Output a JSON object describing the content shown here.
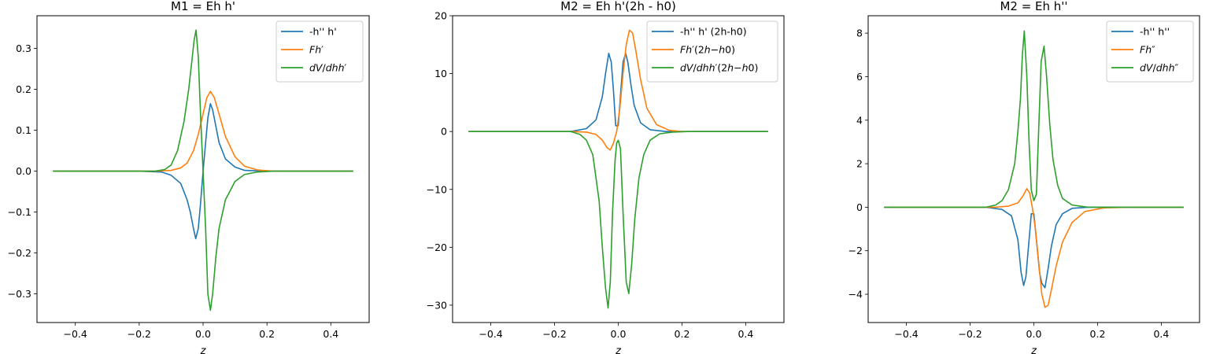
{
  "colors": {
    "blue": "#1f77b4",
    "orange": "#ff7f0e",
    "green": "#2ca02c"
  },
  "chart_data": [
    {
      "type": "line",
      "title": "M1 = Eh h'",
      "xlabel": "z",
      "xlim": [
        -0.52,
        0.52
      ],
      "ylim": [
        -0.37,
        0.38
      ],
      "xticks": [
        -0.4,
        -0.2,
        0.0,
        0.2,
        0.4
      ],
      "yticks": [
        -0.3,
        -0.2,
        -0.1,
        0.0,
        0.1,
        0.2,
        0.3
      ],
      "legend": "top-right",
      "series": [
        {
          "name": "-h'' h'",
          "color": "blue",
          "points": [
            [
              -0.47,
              0
            ],
            [
              -0.2,
              0
            ],
            [
              -0.13,
              -0.002
            ],
            [
              -0.1,
              -0.01
            ],
            [
              -0.07,
              -0.03
            ],
            [
              -0.05,
              -0.07
            ],
            [
              -0.04,
              -0.1
            ],
            [
              -0.03,
              -0.14
            ],
            [
              -0.023,
              -0.165
            ],
            [
              -0.015,
              -0.14
            ],
            [
              -0.008,
              -0.08
            ],
            [
              0,
              0
            ],
            [
              0.008,
              0.07
            ],
            [
              0.015,
              0.13
            ],
            [
              0.023,
              0.165
            ],
            [
              0.03,
              0.15
            ],
            [
              0.04,
              0.11
            ],
            [
              0.05,
              0.07
            ],
            [
              0.07,
              0.03
            ],
            [
              0.1,
              0.01
            ],
            [
              0.13,
              0.002
            ],
            [
              0.2,
              0
            ],
            [
              0.47,
              0
            ]
          ]
        },
        {
          "name": "Fh'",
          "color": "orange",
          "points": [
            [
              -0.47,
              0
            ],
            [
              -0.15,
              0
            ],
            [
              -0.1,
              0.002
            ],
            [
              -0.07,
              0.008
            ],
            [
              -0.05,
              0.02
            ],
            [
              -0.03,
              0.05
            ],
            [
              -0.015,
              0.09
            ],
            [
              0,
              0.14
            ],
            [
              0.012,
              0.18
            ],
            [
              0.023,
              0.195
            ],
            [
              0.035,
              0.18
            ],
            [
              0.05,
              0.14
            ],
            [
              0.07,
              0.085
            ],
            [
              0.1,
              0.035
            ],
            [
              0.13,
              0.012
            ],
            [
              0.17,
              0.003
            ],
            [
              0.22,
              0
            ],
            [
              0.47,
              0
            ]
          ]
        },
        {
          "name": "dV/dhh'",
          "color": "green",
          "points": [
            [
              -0.47,
              0
            ],
            [
              -0.15,
              0
            ],
            [
              -0.12,
              0.004
            ],
            [
              -0.1,
              0.015
            ],
            [
              -0.08,
              0.05
            ],
            [
              -0.06,
              0.12
            ],
            [
              -0.045,
              0.2
            ],
            [
              -0.035,
              0.27
            ],
            [
              -0.028,
              0.32
            ],
            [
              -0.022,
              0.345
            ],
            [
              -0.015,
              0.28
            ],
            [
              -0.008,
              0.14
            ],
            [
              0,
              0
            ],
            [
              0.008,
              -0.14
            ],
            [
              0.015,
              -0.3
            ],
            [
              0.023,
              -0.34
            ],
            [
              0.03,
              -0.3
            ],
            [
              0.04,
              -0.21
            ],
            [
              0.05,
              -0.14
            ],
            [
              0.07,
              -0.07
            ],
            [
              0.1,
              -0.025
            ],
            [
              0.13,
              -0.008
            ],
            [
              0.17,
              -0.002
            ],
            [
              0.22,
              0
            ],
            [
              0.47,
              0
            ]
          ]
        }
      ]
    },
    {
      "type": "line",
      "title": "M2 = Eh h'(2h - h0)",
      "xlabel": "z",
      "xlim": [
        -0.52,
        0.52
      ],
      "ylim": [
        -33,
        20
      ],
      "xticks": [
        -0.4,
        -0.2,
        0.0,
        0.2,
        0.4
      ],
      "yticks": [
        -30,
        -20,
        -10,
        0,
        10,
        20
      ],
      "legend": "top-right",
      "series": [
        {
          "name": "-h'' h' (2h-h0)",
          "color": "blue",
          "points": [
            [
              -0.47,
              0
            ],
            [
              -0.15,
              0
            ],
            [
              -0.1,
              0.5
            ],
            [
              -0.07,
              2
            ],
            [
              -0.05,
              6
            ],
            [
              -0.04,
              10
            ],
            [
              -0.03,
              13.5
            ],
            [
              -0.022,
              12
            ],
            [
              -0.015,
              7
            ],
            [
              -0.008,
              1
            ],
            [
              0,
              1
            ],
            [
              0.008,
              7
            ],
            [
              0.015,
              12
            ],
            [
              0.023,
              13.5
            ],
            [
              0.03,
              12
            ],
            [
              0.04,
              8
            ],
            [
              0.05,
              4.5
            ],
            [
              0.07,
              1.5
            ],
            [
              0.1,
              0.3
            ],
            [
              0.15,
              0
            ],
            [
              0.47,
              0
            ]
          ]
        },
        {
          "name": "Fh'(2h-h0)",
          "color": "orange",
          "points": [
            [
              -0.47,
              0
            ],
            [
              -0.15,
              0
            ],
            [
              -0.1,
              -0.1
            ],
            [
              -0.07,
              -0.5
            ],
            [
              -0.05,
              -1.5
            ],
            [
              -0.035,
              -2.8
            ],
            [
              -0.025,
              -3.2
            ],
            [
              -0.015,
              -2
            ],
            [
              -0.005,
              0
            ],
            [
              0.005,
              4
            ],
            [
              0.015,
              10
            ],
            [
              0.025,
              15
            ],
            [
              0.035,
              17.5
            ],
            [
              0.045,
              17
            ],
            [
              0.055,
              14
            ],
            [
              0.07,
              9
            ],
            [
              0.09,
              4
            ],
            [
              0.12,
              1.2
            ],
            [
              0.16,
              0.2
            ],
            [
              0.2,
              0
            ],
            [
              0.47,
              0
            ]
          ]
        },
        {
          "name": "dV/dhh'(2h-h0)",
          "color": "green",
          "points": [
            [
              -0.47,
              0
            ],
            [
              -0.15,
              0
            ],
            [
              -0.12,
              -0.5
            ],
            [
              -0.1,
              -1.5
            ],
            [
              -0.08,
              -4
            ],
            [
              -0.06,
              -12
            ],
            [
              -0.05,
              -20
            ],
            [
              -0.04,
              -27
            ],
            [
              -0.032,
              -30.5
            ],
            [
              -0.025,
              -26
            ],
            [
              -0.018,
              -14
            ],
            [
              -0.01,
              -5
            ],
            [
              -0.005,
              -2
            ],
            [
              0,
              -1.5
            ],
            [
              0.007,
              -3
            ],
            [
              0.015,
              -14
            ],
            [
              0.025,
              -26
            ],
            [
              0.033,
              -28
            ],
            [
              0.042,
              -23
            ],
            [
              0.052,
              -15
            ],
            [
              0.065,
              -8
            ],
            [
              0.08,
              -4
            ],
            [
              0.1,
              -1.5
            ],
            [
              0.13,
              -0.4
            ],
            [
              0.17,
              -0.1
            ],
            [
              0.22,
              0
            ],
            [
              0.47,
              0
            ]
          ]
        }
      ]
    },
    {
      "type": "line",
      "title": "M2 = Eh h''",
      "xlabel": "z",
      "xlim": [
        -0.52,
        0.52
      ],
      "ylim": [
        -5.3,
        8.8
      ],
      "xticks": [
        -0.4,
        -0.2,
        0.0,
        0.2,
        0.4
      ],
      "yticks": [
        -4,
        -2,
        0,
        2,
        4,
        6,
        8
      ],
      "legend": "top-right",
      "series": [
        {
          "name": "-h'' h''",
          "color": "blue",
          "points": [
            [
              -0.47,
              0
            ],
            [
              -0.15,
              0
            ],
            [
              -0.1,
              -0.1
            ],
            [
              -0.07,
              -0.4
            ],
            [
              -0.05,
              -1.5
            ],
            [
              -0.04,
              -3
            ],
            [
              -0.032,
              -3.6
            ],
            [
              -0.025,
              -3.2
            ],
            [
              -0.015,
              -1.5
            ],
            [
              -0.008,
              -0.3
            ],
            [
              0,
              -0.3
            ],
            [
              0.008,
              -1.5
            ],
            [
              0.018,
              -3
            ],
            [
              0.025,
              -3.5
            ],
            [
              0.035,
              -3.7
            ],
            [
              0.045,
              -2.8
            ],
            [
              0.055,
              -1.8
            ],
            [
              0.07,
              -0.8
            ],
            [
              0.09,
              -0.3
            ],
            [
              0.12,
              -0.05
            ],
            [
              0.17,
              0
            ],
            [
              0.47,
              0
            ]
          ]
        },
        {
          "name": "Fh''",
          "color": "orange",
          "points": [
            [
              -0.47,
              0
            ],
            [
              -0.12,
              0
            ],
            [
              -0.08,
              0.05
            ],
            [
              -0.05,
              0.2
            ],
            [
              -0.035,
              0.5
            ],
            [
              -0.022,
              0.85
            ],
            [
              -0.013,
              0.65
            ],
            [
              -0.005,
              0
            ],
            [
              0.005,
              -1
            ],
            [
              0.015,
              -2.5
            ],
            [
              0.025,
              -4
            ],
            [
              0.035,
              -4.6
            ],
            [
              0.045,
              -4.5
            ],
            [
              0.055,
              -3.8
            ],
            [
              0.07,
              -2.7
            ],
            [
              0.09,
              -1.6
            ],
            [
              0.12,
              -0.7
            ],
            [
              0.16,
              -0.2
            ],
            [
              0.22,
              -0.03
            ],
            [
              0.3,
              0
            ],
            [
              0.47,
              0
            ]
          ]
        },
        {
          "name": "dV/dhh''",
          "color": "green",
          "points": [
            [
              -0.47,
              0
            ],
            [
              -0.15,
              0
            ],
            [
              -0.12,
              0.1
            ],
            [
              -0.1,
              0.3
            ],
            [
              -0.08,
              0.8
            ],
            [
              -0.06,
              2
            ],
            [
              -0.05,
              3.5
            ],
            [
              -0.042,
              5
            ],
            [
              -0.036,
              7
            ],
            [
              -0.03,
              8.1
            ],
            [
              -0.022,
              6
            ],
            [
              -0.015,
              3
            ],
            [
              -0.008,
              0.8
            ],
            [
              0,
              0.3
            ],
            [
              0.008,
              0.6
            ],
            [
              0.015,
              3.5
            ],
            [
              0.023,
              6.7
            ],
            [
              0.032,
              7.4
            ],
            [
              0.04,
              6
            ],
            [
              0.05,
              3.8
            ],
            [
              0.06,
              2.2
            ],
            [
              0.075,
              1
            ],
            [
              0.09,
              0.4
            ],
            [
              0.12,
              0.1
            ],
            [
              0.17,
              0
            ],
            [
              0.47,
              0
            ]
          ]
        }
      ]
    }
  ]
}
